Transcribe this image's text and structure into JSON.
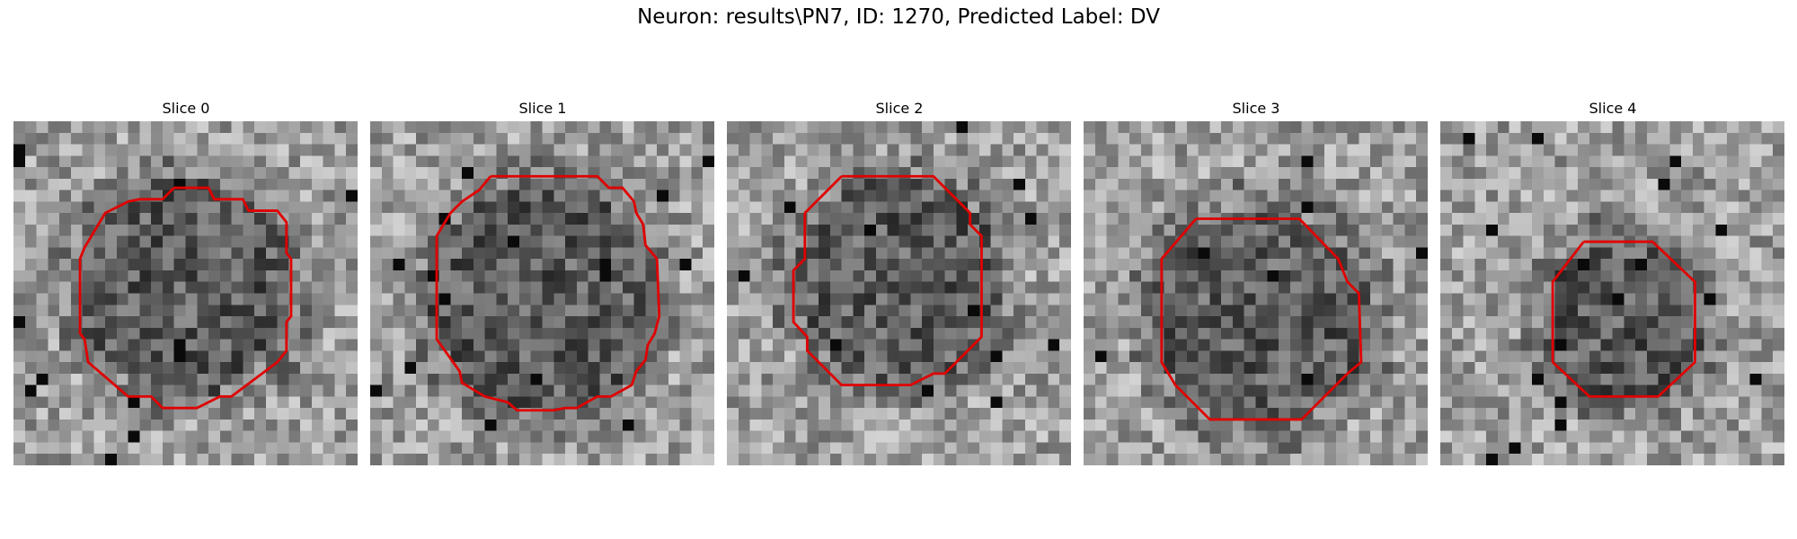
{
  "figure": {
    "title": "Neuron: results\\PN7, ID: 1270, Predicted Label: DV",
    "contour_color": "#e00000",
    "colormap": "gray"
  },
  "slices": [
    {
      "title": "Slice 0"
    },
    {
      "title": "Slice 1"
    },
    {
      "title": "Slice 2"
    },
    {
      "title": "Slice 3"
    },
    {
      "title": "Slice 4"
    }
  ]
}
